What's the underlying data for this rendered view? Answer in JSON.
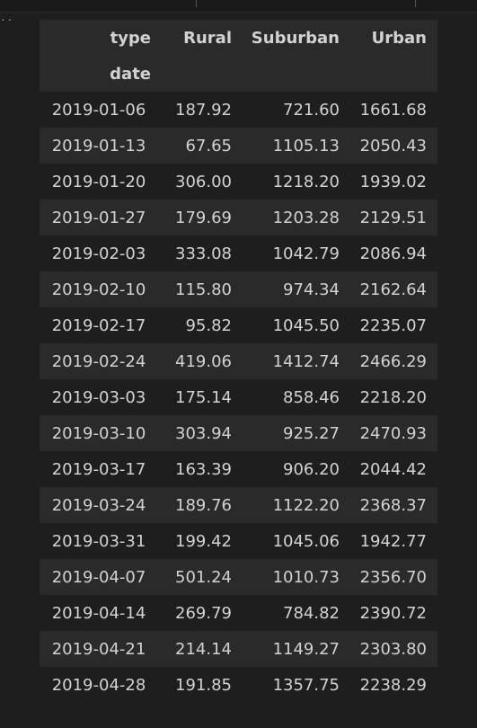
{
  "table": {
    "column_axis_label": "type",
    "index_label": "date",
    "columns": [
      "Rural",
      "Suburban",
      "Urban"
    ],
    "rows": [
      {
        "date": "2019-01-06",
        "values": [
          "187.92",
          "721.60",
          "1661.68"
        ]
      },
      {
        "date": "2019-01-13",
        "values": [
          "67.65",
          "1105.13",
          "2050.43"
        ]
      },
      {
        "date": "2019-01-20",
        "values": [
          "306.00",
          "1218.20",
          "1939.02"
        ]
      },
      {
        "date": "2019-01-27",
        "values": [
          "179.69",
          "1203.28",
          "2129.51"
        ]
      },
      {
        "date": "2019-02-03",
        "values": [
          "333.08",
          "1042.79",
          "2086.94"
        ]
      },
      {
        "date": "2019-02-10",
        "values": [
          "115.80",
          "974.34",
          "2162.64"
        ]
      },
      {
        "date": "2019-02-17",
        "values": [
          "95.82",
          "1045.50",
          "2235.07"
        ]
      },
      {
        "date": "2019-02-24",
        "values": [
          "419.06",
          "1412.74",
          "2466.29"
        ]
      },
      {
        "date": "2019-03-03",
        "values": [
          "175.14",
          "858.46",
          "2218.20"
        ]
      },
      {
        "date": "2019-03-10",
        "values": [
          "303.94",
          "925.27",
          "2470.93"
        ]
      },
      {
        "date": "2019-03-17",
        "values": [
          "163.39",
          "906.20",
          "2044.42"
        ]
      },
      {
        "date": "2019-03-24",
        "values": [
          "189.76",
          "1122.20",
          "2368.37"
        ]
      },
      {
        "date": "2019-03-31",
        "values": [
          "199.42",
          "1045.06",
          "1942.77"
        ]
      },
      {
        "date": "2019-04-07",
        "values": [
          "501.24",
          "1010.73",
          "2356.70"
        ]
      },
      {
        "date": "2019-04-14",
        "values": [
          "269.79",
          "784.82",
          "2390.72"
        ]
      },
      {
        "date": "2019-04-21",
        "values": [
          "214.14",
          "1149.27",
          "2303.80"
        ]
      },
      {
        "date": "2019-04-28",
        "values": [
          "191.85",
          "1357.75",
          "2238.29"
        ]
      }
    ]
  },
  "colors": {
    "background": "#1e1e1e",
    "stripe": "#2a2a2a",
    "text": "#d2d2d2"
  }
}
